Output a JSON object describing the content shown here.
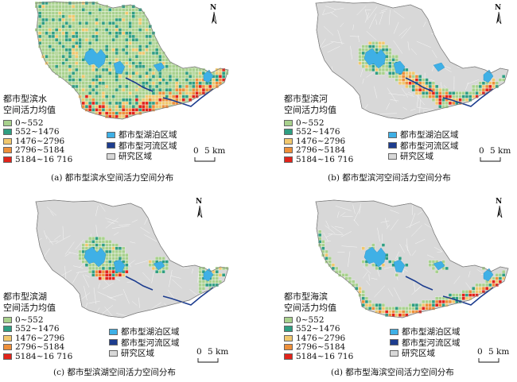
{
  "panels": [
    {
      "id": "a",
      "title": "(a)  都市型滨水空间活力空间分布",
      "legend_title": [
        "都市型滨水",
        "空间活力均值"
      ],
      "mode": "full"
    },
    {
      "id": "b",
      "title": "(b)  都市型滨河空间活力空间分布",
      "legend_title": [
        "都市型滨河",
        "空间活力均值"
      ],
      "mode": "river"
    },
    {
      "id": "c",
      "title": "(c) 都市型滨湖空间活力空间分布",
      "legend_title": [
        "都市型滨湖",
        "空间活力均值"
      ],
      "mode": "lake"
    },
    {
      "id": "d",
      "title": "(d)  都市型海滨空间活力空间分布",
      "legend_title": [
        "都市型海滨",
        "空间活力均值"
      ],
      "mode": "sea"
    }
  ],
  "vitality_classes": [
    {
      "label": "0~552",
      "color": "#a8d18d"
    },
    {
      "label": "552~1476",
      "color": "#2f9e82"
    },
    {
      "label": "1476~2796",
      "color": "#f1c86e"
    },
    {
      "label": "2796~5184",
      "color": "#ee8f3a"
    },
    {
      "label": "5184~16 716",
      "color": "#e2231a"
    }
  ],
  "area_classes": [
    {
      "label": "都市型湖泊区域",
      "color": "#3fb0e6"
    },
    {
      "label": "都市型河流区域",
      "color": "#1d3d8f"
    },
    {
      "label": "研究区域",
      "color": "#d8d8d8"
    }
  ],
  "north_label": "N",
  "scale_start": "0",
  "scale_end": "5 km"
}
